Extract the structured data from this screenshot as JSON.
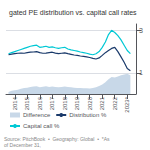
{
  "chart_data": {
    "type": "line",
    "title": "gated PE distribution vs. capital call rates",
    "annotations": [
      "Source: PitchBook  •  Geography: Global  •  *As of December 31,"
    ],
    "x": [
      2013.5,
      2013.75,
      2014.0,
      2014.25,
      2014.5,
      2014.75,
      2015.0,
      2015.25,
      2015.5,
      2015.75,
      2016.0,
      2016.25,
      2016.5,
      2016.75,
      2017.0,
      2017.25,
      2017.5,
      2017.75,
      2018.0,
      2018.25,
      2018.5,
      2018.75,
      2019.0,
      2019.25,
      2019.5,
      2019.75,
      2020.0,
      2020.25,
      2020.5,
      2020.75,
      2021.0,
      2021.25,
      2021.5,
      2021.75,
      2022.0,
      2022.25,
      2022.5,
      2022.75,
      2023.0,
      2023.25
    ],
    "series": [
      {
        "name": "Difference",
        "type": "area",
        "color": "#c8d8e8",
        "values": [
          0.1,
          0.15,
          0.18,
          0.2,
          0.25,
          0.28,
          0.3,
          0.33,
          0.35,
          0.37,
          0.32,
          0.34,
          0.36,
          0.33,
          0.35,
          0.33,
          0.32,
          0.33,
          0.35,
          0.33,
          0.32,
          0.3,
          0.28,
          0.28,
          0.27,
          0.27,
          0.26,
          0.28,
          0.32,
          0.38,
          0.45,
          0.55,
          0.7,
          0.8,
          0.78,
          0.82,
          0.88,
          0.92,
          0.95,
          0.88
        ]
      },
      {
        "name": "Distribution %",
        "type": "line",
        "color": "#1a3a6b",
        "values": [
          1.85,
          1.88,
          1.9,
          1.92,
          1.93,
          1.92,
          1.95,
          1.97,
          1.98,
          2.0,
          1.95,
          1.92,
          1.93,
          1.95,
          1.97,
          1.93,
          1.9,
          1.92,
          1.94,
          1.9,
          1.87,
          1.84,
          1.82,
          1.79,
          1.77,
          1.75,
          1.72,
          1.68,
          1.65,
          1.7,
          1.82,
          1.95,
          2.05,
          2.15,
          2.2,
          2.0,
          1.75,
          1.5,
          1.2,
          1.1
        ]
      },
      {
        "name": "Capital call %",
        "type": "line",
        "color": "#00c8d4",
        "values": [
          1.9,
          1.95,
          2.0,
          2.05,
          2.1,
          2.15,
          2.2,
          2.25,
          2.28,
          2.3,
          2.2,
          2.22,
          2.25,
          2.2,
          2.22,
          2.18,
          2.15,
          2.18,
          2.2,
          2.12,
          2.08,
          2.05,
          2.02,
          1.98,
          1.95,
          1.92,
          1.88,
          1.85,
          1.9,
          2.0,
          2.2,
          2.45,
          2.8,
          3.0,
          2.9,
          2.75,
          2.55,
          2.3,
          2.05,
          1.9
        ]
      }
    ],
    "xlim": [
      2013.3,
      2023.7
    ],
    "xticks": [
      2014,
      2015,
      2016,
      2017,
      2018,
      2019,
      2020,
      2021,
      2022,
      {
        "value": 2023,
        "label": "2023*"
      }
    ],
    "ylim": [
      0.0,
      3.3
    ],
    "yticks": [
      1,
      3
    ],
    "grid": true,
    "legend": "bottom"
  }
}
